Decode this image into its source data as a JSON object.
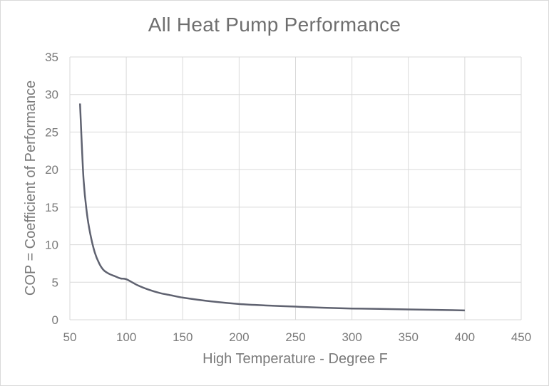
{
  "chart_data": {
    "type": "line",
    "title": "All Heat Pump Performance",
    "xlabel": "High Temperature - Degree F",
    "ylabel": "COP = Coefficient of Performance",
    "xlim": [
      50,
      450
    ],
    "ylim": [
      0,
      35
    ],
    "xticks": [
      50,
      100,
      150,
      200,
      250,
      300,
      350,
      400,
      450
    ],
    "yticks": [
      0,
      5,
      10,
      15,
      20,
      25,
      30,
      35
    ],
    "grid": true,
    "legend": "none",
    "line_color": "#5f6270",
    "series": [
      {
        "x": [
          59,
          62,
          65,
          68,
          72,
          76,
          80,
          85,
          90,
          95,
          100,
          110,
          120,
          130,
          140,
          150,
          175,
          200,
          225,
          250,
          275,
          300,
          325,
          350,
          375,
          400
        ],
        "y": [
          28.8,
          19.0,
          14.3,
          11.5,
          9.0,
          7.5,
          6.6,
          6.1,
          5.8,
          5.5,
          5.4,
          4.6,
          4.0,
          3.55,
          3.25,
          2.95,
          2.45,
          2.1,
          1.9,
          1.75,
          1.6,
          1.5,
          1.45,
          1.38,
          1.32,
          1.25
        ]
      }
    ]
  }
}
